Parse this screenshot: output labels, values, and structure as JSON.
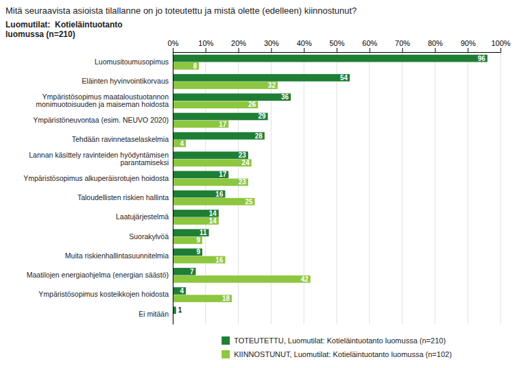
{
  "chart_data": {
    "type": "bar",
    "orientation": "horizontal",
    "title": "Mitä seuraavista asioista tilallanne on jo toteutettu ja mistä olette (edelleen) kiinnostunut?",
    "subtitle": "Luomutilat:  Kotieläintuotanto\nluomussa (n=210)",
    "categories": [
      "Luomusitoumusopimus",
      "Eläinten hyvinvointikorvaus",
      "Ympäristösopimus maataloustuotannon\nmonimuotoisuuden ja maiseman hoidosta",
      "Ympäristöneuvontaa (esim. NEUVO 2020)",
      "Tehdään ravinnetaselaskelmia",
      "Lannan käsittely ravinteiden hyödyntämisen\nparantamiseksi",
      "Ympäristösopimus alkuperäisrotujen hoidosta",
      "Taloudellisten riskien hallinta",
      "Laatujärjestelmä",
      "Suorakylvöä",
      "Muita riskienhallintasuunnitelmia",
      "Maatilojen energiaohjelma (energian säästö)",
      "Ympäristösopimus kosteikkojen hoidosta",
      "Ei mitään"
    ],
    "series": [
      {
        "name": "TOTEUTETTU, Luomutilat: Kotieläintuotanto luomussa (n=210)",
        "color": "#1e7e34",
        "values": [
          96,
          54,
          36,
          29,
          28,
          23,
          17,
          16,
          14,
          11,
          9,
          7,
          4,
          1
        ]
      },
      {
        "name": "KIINNOSTUNUT, Luomutilat: Kotieläintuotanto luomussa (n=102)",
        "color": "#8dc63f",
        "values": [
          8,
          32,
          26,
          17,
          4,
          24,
          23,
          25,
          14,
          9,
          16,
          42,
          18,
          0
        ]
      }
    ],
    "xlim": [
      0,
      100
    ],
    "xticks": [
      {
        "value": 0,
        "label": "0%"
      },
      {
        "value": 10,
        "label": "10%"
      },
      {
        "value": 20,
        "label": "20%"
      },
      {
        "value": 30,
        "label": "30%"
      },
      {
        "value": 40,
        "label": "40%"
      },
      {
        "value": 50,
        "label": "50%"
      },
      {
        "value": 60,
        "label": "60%"
      },
      {
        "value": 70,
        "label": "70%"
      },
      {
        "value": 80,
        "label": "80%"
      },
      {
        "value": 90,
        "label": "90%"
      },
      {
        "value": 100,
        "label": "100%"
      }
    ],
    "grid": true,
    "legend": "bottom",
    "data_labels": true
  }
}
